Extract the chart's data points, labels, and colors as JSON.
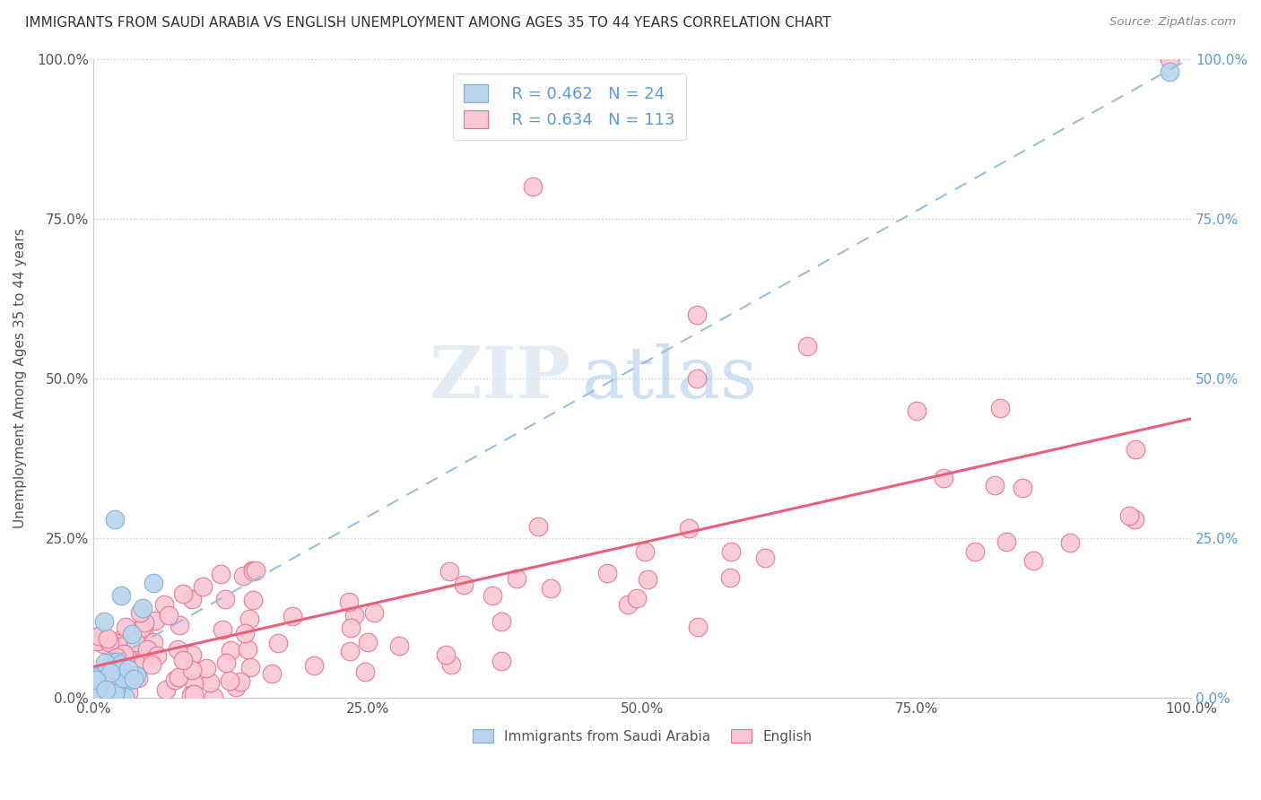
{
  "title": "IMMIGRANTS FROM SAUDI ARABIA VS ENGLISH UNEMPLOYMENT AMONG AGES 35 TO 44 YEARS CORRELATION CHART",
  "source": "Source: ZipAtlas.com",
  "ylabel": "Unemployment Among Ages 35 to 44 years",
  "watermark_zip": "ZIP",
  "watermark_atlas": "atlas",
  "legend1_label": "Immigrants from Saudi Arabia",
  "legend2_label": "English",
  "r1": 0.462,
  "n1": 24,
  "r2": 0.634,
  "n2": 113,
  "blue_face": "#b8d4ed",
  "blue_edge": "#7aaed6",
  "pink_face": "#f9c8d4",
  "pink_edge": "#e87090",
  "line_blue_color": "#9bbfda",
  "line_pink_color": "#e8607a",
  "grid_color": "#cccccc",
  "title_color": "#333333",
  "source_color": "#888888",
  "axis_color": "#555555",
  "right_axis_color": "#5b9bd5",
  "xlim": [
    0,
    100
  ],
  "ylim": [
    0,
    100
  ],
  "xtick_vals": [
    0,
    25,
    50,
    75,
    100
  ],
  "xtick_labels": [
    "0.0%",
    "25.0%",
    "50.0%",
    "75.0%",
    "100.0%"
  ],
  "ytick_vals": [
    0,
    25,
    50,
    75,
    100
  ],
  "ytick_labels": [
    "0.0%",
    "25.0%",
    "50.0%",
    "75.0%",
    "100.0%"
  ]
}
